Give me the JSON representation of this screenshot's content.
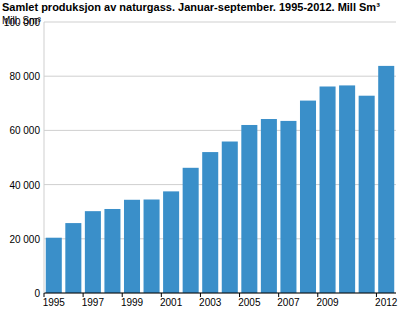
{
  "chart_data": {
    "type": "bar",
    "title": "Samlet produksjon av naturgass. Januar-september. 1995-2012. Mill Sm³",
    "y_label": "Mill. Sm³",
    "categories": [
      "1995",
      null,
      "1997",
      null,
      "1999",
      null,
      "2001",
      null,
      "2003",
      null,
      "2005",
      null,
      "2007",
      null,
      "2009",
      null,
      null,
      "2012"
    ],
    "values": [
      20400,
      25800,
      30200,
      31000,
      34400,
      34500,
      37500,
      46200,
      52000,
      55900,
      62000,
      64200,
      63500,
      71000,
      76200,
      76600,
      72800,
      83800
    ],
    "color": "#3a8fc9",
    "ylim": [
      0,
      100000
    ],
    "yticks": [
      0,
      {
        "value": 20000,
        "label": "20 000"
      },
      {
        "value": 40000,
        "label": "40 000"
      },
      {
        "value": 60000,
        "label": "60 000"
      },
      {
        "value": 80000,
        "label": "80 000"
      },
      {
        "value": 100000,
        "label": "100 000"
      }
    ],
    "grid": true
  }
}
